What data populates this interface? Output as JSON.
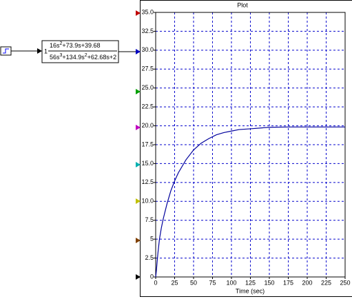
{
  "block": {
    "gain": "1",
    "numerator": [
      "16s",
      "2",
      "+73.9s+39.68"
    ],
    "denominator": [
      "56s",
      "3",
      "+134.9s",
      "2",
      "+62.68s+2"
    ]
  },
  "chart_data": {
    "type": "line",
    "title": "Plot",
    "xlabel": "Time (sec)",
    "x": [
      0,
      1,
      2,
      3,
      5,
      7.5,
      10,
      15,
      20,
      25,
      30,
      40,
      50,
      60,
      70,
      80,
      90,
      100,
      110,
      125,
      150,
      175,
      200,
      225,
      250
    ],
    "series": [
      {
        "color": "#00009c",
        "values": [
          0,
          0.9,
          2.1,
          3.2,
          5.0,
          6.5,
          7.7,
          9.7,
          11.4,
          12.7,
          13.8,
          15.5,
          16.8,
          17.7,
          18.3,
          18.8,
          19.1,
          19.3,
          19.5,
          19.6,
          19.8,
          19.84,
          19.84,
          19.84,
          19.84
        ]
      }
    ],
    "xlim": [
      0,
      250
    ],
    "xticks": [
      0,
      25,
      50,
      75,
      100,
      125,
      150,
      175,
      200,
      225,
      250
    ],
    "ylim": [
      0,
      35
    ],
    "yticks": [
      0,
      2.5,
      5,
      7.5,
      {
        "value": 10,
        "label": "10.0"
      },
      12.5,
      {
        "value": 15,
        "label": "15.0"
      },
      17.5,
      {
        "value": 20,
        "label": "20.0"
      },
      22.5,
      {
        "value": 25,
        "label": "25.0"
      },
      27.5,
      {
        "value": 30,
        "label": "30.0"
      },
      32.5,
      {
        "value": 35,
        "label": "35.0"
      }
    ],
    "grid": true,
    "grid_color": "#0000cc"
  }
}
